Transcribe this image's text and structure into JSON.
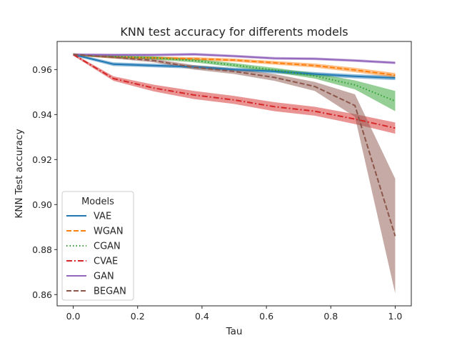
{
  "chart_data": {
    "type": "line",
    "title": "KNN test accuracy for differents models",
    "xlabel": "Tau",
    "ylabel": "KNN Test accuracy",
    "xlim": [
      -0.05,
      1.05
    ],
    "ylim": [
      0.855,
      0.9725
    ],
    "xticks": [
      "0.0",
      "0.2",
      "0.4",
      "0.6",
      "0.8",
      "1.0"
    ],
    "xtick_values": [
      0.0,
      0.2,
      0.4,
      0.6,
      0.8,
      1.0
    ],
    "yticks": [
      "0.86",
      "0.88",
      "0.90",
      "0.92",
      "0.94",
      "0.96"
    ],
    "ytick_values": [
      0.86,
      0.88,
      0.9,
      0.92,
      0.94,
      0.96
    ],
    "grid": false,
    "legend": {
      "title": "Models",
      "placement": "lower-left"
    },
    "x": [
      0.0,
      0.125,
      0.25,
      0.375,
      0.5,
      0.625,
      0.75,
      0.875,
      1.0
    ],
    "series": [
      {
        "name": "VAE",
        "color": "#1f77b4",
        "dash": "solid",
        "values": [
          0.9667,
          0.9624,
          0.9618,
          0.9612,
          0.96,
          0.9592,
          0.958,
          0.957,
          0.9563
        ],
        "band": [
          0.0006,
          0.0008,
          0.0008,
          0.0008,
          0.0008,
          0.0009,
          0.0009,
          0.0009,
          0.001
        ]
      },
      {
        "name": "WGAN",
        "color": "#ff7f0e",
        "dash": "dashed",
        "values": [
          0.9667,
          0.9655,
          0.9652,
          0.9648,
          0.9642,
          0.963,
          0.9618,
          0.9598,
          0.9575
        ],
        "band": [
          0.0005,
          0.0006,
          0.0006,
          0.0007,
          0.0007,
          0.0008,
          0.0009,
          0.001,
          0.001
        ]
      },
      {
        "name": "CGAN",
        "color": "#2ca02c",
        "dash": "dotted",
        "values": [
          0.9667,
          0.9658,
          0.9652,
          0.964,
          0.962,
          0.9598,
          0.9572,
          0.9532,
          0.946
        ],
        "band": [
          0.0005,
          0.0006,
          0.0007,
          0.0008,
          0.0009,
          0.001,
          0.0012,
          0.002,
          0.0045
        ]
      },
      {
        "name": "CVAE",
        "color": "#d62728",
        "dash": "dashdot",
        "values": [
          0.9667,
          0.956,
          0.9518,
          0.9487,
          0.9465,
          0.9435,
          0.9415,
          0.938,
          0.934
        ],
        "band": [
          0.0005,
          0.001,
          0.0015,
          0.0018,
          0.0018,
          0.002,
          0.002,
          0.0022,
          0.0025
        ]
      },
      {
        "name": "GAN",
        "color": "#9467bd",
        "dash": "solid",
        "values": [
          0.9667,
          0.9665,
          0.9665,
          0.9668,
          0.966,
          0.965,
          0.9648,
          0.964,
          0.963
        ],
        "band": [
          0.0005,
          0.0006,
          0.0006,
          0.0006,
          0.0006,
          0.0006,
          0.0006,
          0.0006,
          0.0006
        ]
      },
      {
        "name": "BEGAN",
        "color": "#8c564b",
        "dash": "dashed",
        "values": [
          0.9667,
          0.9655,
          0.964,
          0.961,
          0.9592,
          0.9565,
          0.9525,
          0.944,
          0.886
        ],
        "band": [
          0.0005,
          0.0006,
          0.0008,
          0.001,
          0.0012,
          0.0015,
          0.002,
          0.005,
          0.0255
        ]
      }
    ]
  }
}
